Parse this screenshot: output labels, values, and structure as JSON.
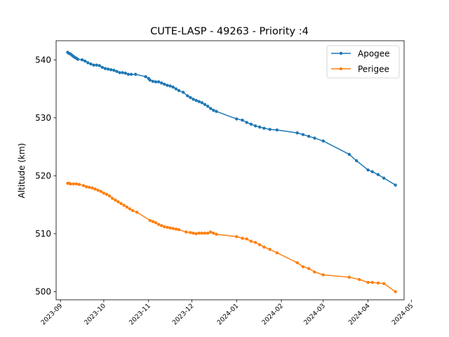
{
  "chart_data": {
    "type": "line",
    "title": "CUTE-LASP - 49263 - Priority :4",
    "xlabel": "",
    "ylabel": "Altitude (km)",
    "xlim": [
      "2023-08-29",
      "2024-04-26"
    ],
    "ylim": [
      498.6,
      543.3
    ],
    "x_ticks": [
      "2023-09",
      "2023-10",
      "2023-11",
      "2023-12",
      "2024-01",
      "2024-02",
      "2024-03",
      "2024-04",
      "2024-05"
    ],
    "x_tick_dates": [
      "2023-09-01",
      "2023-10-01",
      "2023-11-01",
      "2023-12-01",
      "2024-01-01",
      "2024-02-01",
      "2024-03-01",
      "2024-04-01",
      "2024-05-01"
    ],
    "y_ticks": [
      500,
      510,
      520,
      530,
      540
    ],
    "grid": false,
    "legend_position": "top-right",
    "series": [
      {
        "name": "Apogee",
        "color": "#1f77b4",
        "points": [
          [
            "2023-09-06",
            541.3
          ],
          [
            "2023-09-07",
            541.1
          ],
          [
            "2023-09-08",
            541.0
          ],
          [
            "2023-09-09",
            540.8
          ],
          [
            "2023-09-10",
            540.6
          ],
          [
            "2023-09-11",
            540.4
          ],
          [
            "2023-09-12",
            540.3
          ],
          [
            "2023-09-13",
            540.1
          ],
          [
            "2023-09-16",
            540.0
          ],
          [
            "2023-09-18",
            539.8
          ],
          [
            "2023-09-20",
            539.5
          ],
          [
            "2023-09-22",
            539.3
          ],
          [
            "2023-09-24",
            539.1
          ],
          [
            "2023-09-26",
            539.1
          ],
          [
            "2023-09-28",
            539.0
          ],
          [
            "2023-09-30",
            538.7
          ],
          [
            "2023-10-02",
            538.5
          ],
          [
            "2023-10-04",
            538.4
          ],
          [
            "2023-10-06",
            538.3
          ],
          [
            "2023-10-08",
            538.2
          ],
          [
            "2023-10-10",
            538.0
          ],
          [
            "2023-10-12",
            537.8
          ],
          [
            "2023-10-14",
            537.8
          ],
          [
            "2023-10-16",
            537.7
          ],
          [
            "2023-10-18",
            537.5
          ],
          [
            "2023-10-20",
            537.5
          ],
          [
            "2023-10-23",
            537.5
          ],
          [
            "2023-10-30",
            537.1
          ],
          [
            "2023-11-01",
            536.8
          ],
          [
            "2023-11-02",
            536.5
          ],
          [
            "2023-11-04",
            536.3
          ],
          [
            "2023-11-06",
            536.2
          ],
          [
            "2023-11-08",
            536.2
          ],
          [
            "2023-11-10",
            536.0
          ],
          [
            "2023-11-12",
            535.8
          ],
          [
            "2023-11-14",
            535.6
          ],
          [
            "2023-11-16",
            535.5
          ],
          [
            "2023-11-18",
            535.3
          ],
          [
            "2023-11-20",
            535.0
          ],
          [
            "2023-11-22",
            534.7
          ],
          [
            "2023-11-25",
            534.4
          ],
          [
            "2023-11-28",
            533.8
          ],
          [
            "2023-11-30",
            533.5
          ],
          [
            "2023-12-02",
            533.2
          ],
          [
            "2023-12-04",
            533.0
          ],
          [
            "2023-12-06",
            532.8
          ],
          [
            "2023-12-08",
            532.6
          ],
          [
            "2023-12-10",
            532.3
          ],
          [
            "2023-12-12",
            532.0
          ],
          [
            "2023-12-14",
            531.6
          ],
          [
            "2023-12-16",
            531.3
          ],
          [
            "2023-12-18",
            531.1
          ],
          [
            "2024-01-01",
            529.8
          ],
          [
            "2024-01-05",
            529.6
          ],
          [
            "2024-01-08",
            529.2
          ],
          [
            "2024-01-11",
            528.9
          ],
          [
            "2024-01-14",
            528.6
          ],
          [
            "2024-01-17",
            528.4
          ],
          [
            "2024-01-20",
            528.2
          ],
          [
            "2024-01-24",
            528.0
          ],
          [
            "2024-01-29",
            527.9
          ],
          [
            "2024-02-12",
            527.4
          ],
          [
            "2024-02-16",
            527.1
          ],
          [
            "2024-02-20",
            526.8
          ],
          [
            "2024-02-24",
            526.5
          ],
          [
            "2024-03-01",
            526.0
          ],
          [
            "2024-03-19",
            523.7
          ],
          [
            "2024-03-24",
            522.6
          ],
          [
            "2024-04-01",
            521.0
          ],
          [
            "2024-04-04",
            520.7
          ],
          [
            "2024-04-08",
            520.2
          ],
          [
            "2024-04-12",
            519.6
          ],
          [
            "2024-04-20",
            518.4
          ]
        ]
      },
      {
        "name": "Perigee",
        "color": "#ff7f0e",
        "points": [
          [
            "2023-09-06",
            518.7
          ],
          [
            "2023-09-07",
            518.7
          ],
          [
            "2023-09-08",
            518.6
          ],
          [
            "2023-09-10",
            518.6
          ],
          [
            "2023-09-12",
            518.6
          ],
          [
            "2023-09-14",
            518.5
          ],
          [
            "2023-09-17",
            518.3
          ],
          [
            "2023-09-19",
            518.1
          ],
          [
            "2023-09-21",
            518.0
          ],
          [
            "2023-09-23",
            517.9
          ],
          [
            "2023-09-25",
            517.7
          ],
          [
            "2023-09-27",
            517.5
          ],
          [
            "2023-09-29",
            517.3
          ],
          [
            "2023-10-01",
            517.0
          ],
          [
            "2023-10-03",
            516.8
          ],
          [
            "2023-10-05",
            516.5
          ],
          [
            "2023-10-07",
            516.1
          ],
          [
            "2023-10-09",
            515.8
          ],
          [
            "2023-10-11",
            515.5
          ],
          [
            "2023-10-13",
            515.2
          ],
          [
            "2023-10-15",
            514.9
          ],
          [
            "2023-10-17",
            514.6
          ],
          [
            "2023-10-19",
            514.3
          ],
          [
            "2023-10-21",
            514.0
          ],
          [
            "2023-10-24",
            513.7
          ],
          [
            "2023-11-02",
            512.3
          ],
          [
            "2023-11-04",
            512.1
          ],
          [
            "2023-11-06",
            511.9
          ],
          [
            "2023-11-08",
            511.6
          ],
          [
            "2023-11-10",
            511.4
          ],
          [
            "2023-11-12",
            511.2
          ],
          [
            "2023-11-14",
            511.1
          ],
          [
            "2023-11-16",
            511.0
          ],
          [
            "2023-11-18",
            510.9
          ],
          [
            "2023-11-20",
            510.8
          ],
          [
            "2023-11-22",
            510.7
          ],
          [
            "2023-11-27",
            510.3
          ],
          [
            "2023-11-30",
            510.2
          ],
          [
            "2023-12-02",
            510.1
          ],
          [
            "2023-12-04",
            510.0
          ],
          [
            "2023-12-06",
            510.1
          ],
          [
            "2023-12-08",
            510.1
          ],
          [
            "2023-12-10",
            510.1
          ],
          [
            "2023-12-12",
            510.1
          ],
          [
            "2023-12-14",
            510.3
          ],
          [
            "2023-12-16",
            510.1
          ],
          [
            "2023-12-18",
            509.9
          ],
          [
            "2024-01-01",
            509.5
          ],
          [
            "2024-01-05",
            509.2
          ],
          [
            "2024-01-08",
            509.1
          ],
          [
            "2024-01-11",
            508.7
          ],
          [
            "2024-01-14",
            508.5
          ],
          [
            "2024-01-17",
            508.1
          ],
          [
            "2024-01-20",
            507.7
          ],
          [
            "2024-01-24",
            507.3
          ],
          [
            "2024-01-29",
            506.7
          ],
          [
            "2024-02-12",
            505.0
          ],
          [
            "2024-02-16",
            504.3
          ],
          [
            "2024-02-20",
            504.0
          ],
          [
            "2024-02-24",
            503.4
          ],
          [
            "2024-03-01",
            502.9
          ],
          [
            "2024-03-19",
            502.5
          ],
          [
            "2024-03-26",
            502.1
          ],
          [
            "2024-04-01",
            501.6
          ],
          [
            "2024-04-04",
            501.6
          ],
          [
            "2024-04-08",
            501.5
          ],
          [
            "2024-04-12",
            501.4
          ],
          [
            "2024-04-20",
            500.0
          ]
        ]
      }
    ]
  }
}
